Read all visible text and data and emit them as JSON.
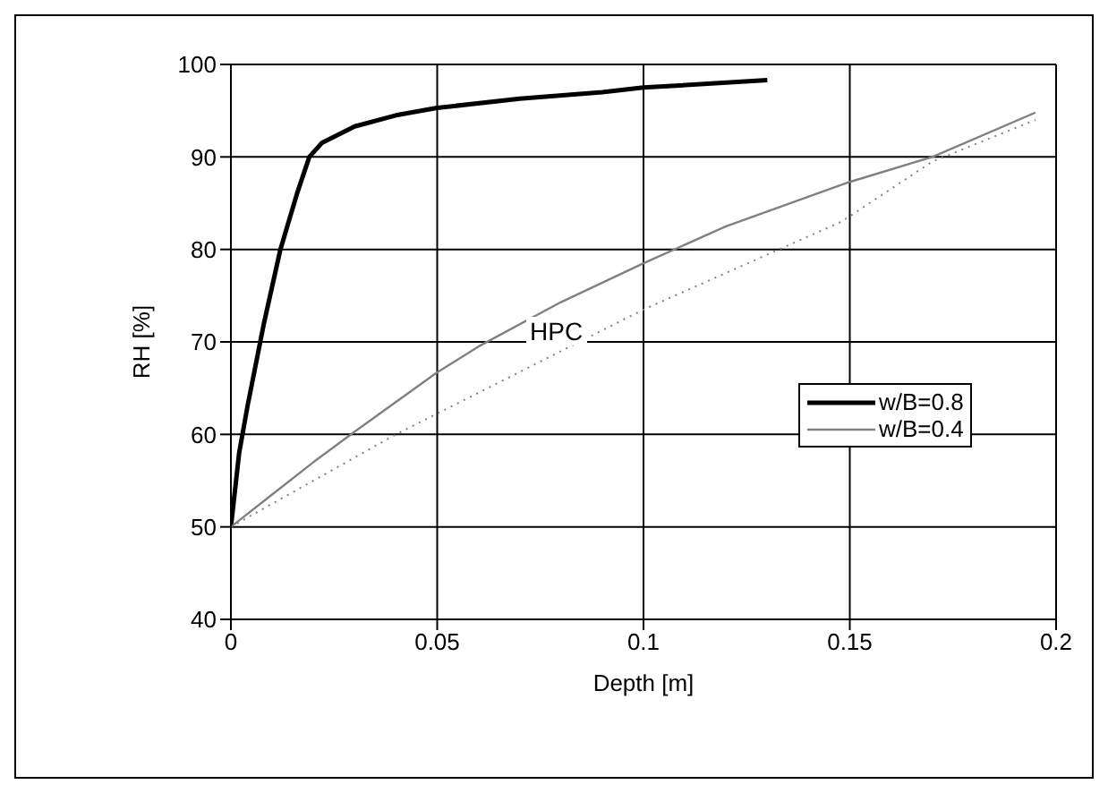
{
  "chart_data": {
    "type": "line",
    "xlabel": "Depth [m]",
    "ylabel": "RH [%]",
    "xlim": [
      0,
      0.2
    ],
    "xticks": [
      0,
      0.05,
      0.1,
      0.15,
      0.2
    ],
    "ylim": [
      40,
      100
    ],
    "yticks": [
      40,
      50,
      60,
      70,
      80,
      90,
      100
    ],
    "grid": true,
    "legend": "right",
    "marker": "none",
    "series": [
      {
        "name": "w/B=0.8",
        "color": "#000000",
        "x": [
          0,
          0.002,
          0.004,
          0.008,
          0.012,
          0.016,
          0.019,
          0.022,
          0.03,
          0.04,
          0.05,
          0.07,
          0.09,
          0.1,
          0.13
        ],
        "values": [
          50,
          58,
          63,
          72,
          80,
          86,
          90,
          91.5,
          93.3,
          94.5,
          95.3,
          96.3,
          97,
          97.5,
          98.3
        ]
      },
      {
        "name": "w/B=0.4",
        "color": "#808080",
        "x": [
          0,
          0.01,
          0.02,
          0.03,
          0.05,
          0.06,
          0.08,
          0.1,
          0.12,
          0.15,
          0.17,
          0.195
        ],
        "values": [
          50,
          53.5,
          57,
          60.3,
          66.7,
          69.5,
          74.3,
          78.5,
          82.5,
          87.3,
          90,
          94.8
        ]
      },
      {
        "color": "#808080",
        "line_style": "dotted",
        "x": [
          0,
          0.04,
          0.1,
          0.148,
          0.17,
          0.195
        ],
        "values": [
          50,
          60,
          73.5,
          83,
          89.5,
          94
        ]
      }
    ],
    "annotations": [
      "HPC"
    ]
  }
}
